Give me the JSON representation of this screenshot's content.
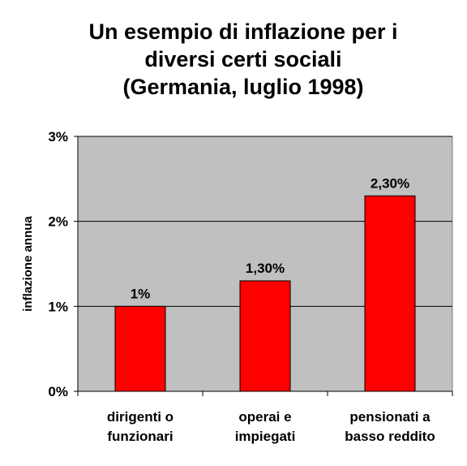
{
  "chart_data": {
    "type": "bar",
    "title": "Un esempio di inflazione  per i\ndiversi certi sociali\n(Germania, luglio 1998)",
    "xlabel": "",
    "ylabel": "inflazione annua",
    "categories": [
      [
        "dirigenti o",
        "funzionari"
      ],
      [
        "operai e",
        "impiegati"
      ],
      [
        "pensionati a",
        "basso reddito"
      ]
    ],
    "values": [
      1,
      1.3,
      2.3
    ],
    "data_labels": [
      "1%",
      "1,30%",
      "2,30%"
    ],
    "ylim": [
      0,
      3
    ],
    "yticks": [
      0,
      1,
      2,
      3
    ],
    "ytick_labels": [
      "0%",
      "1%",
      "2%",
      "3%"
    ],
    "grid": true,
    "legend": "none",
    "colors": {
      "bar": "#ff0000",
      "plot_area": "#c0c0c0",
      "gridline": "#000000"
    }
  }
}
